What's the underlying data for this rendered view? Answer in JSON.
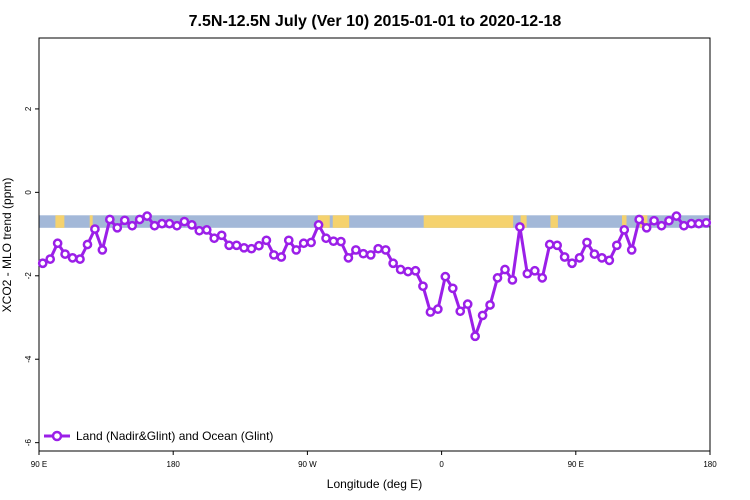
{
  "chart_data": {
    "type": "line",
    "title": "7.5N-12.5N July (Ver 10)   2015-01-01 to 2020-12-18",
    "xlabel": "Longitude (deg E)",
    "ylabel": "XCO2 - MLO trend (ppm)",
    "x_tick_labels": [
      "90 E",
      "180",
      "90 W",
      "0",
      "90 E",
      "180"
    ],
    "x_tick_values": [
      90,
      180,
      270,
      360,
      450,
      540
    ],
    "xlim": [
      90,
      540
    ],
    "y_tick_values": [
      -6,
      -4,
      -2,
      0,
      2
    ],
    "y_tick_labels": [
      "-6",
      "-4",
      "-2",
      "0",
      "2"
    ],
    "ylim": [
      -6.2,
      3.7
    ],
    "band": {
      "y_range": [
        -0.85,
        -0.55
      ],
      "ocean_color": "#a3b8d8",
      "land_color": "#f5d26e",
      "land_segments": [
        [
          101,
          107
        ],
        [
          124,
          126
        ],
        [
          277,
          285
        ],
        [
          287,
          298
        ],
        [
          348,
          408
        ],
        [
          413,
          417
        ],
        [
          433,
          438
        ],
        [
          481,
          484
        ],
        [
          493,
          498
        ]
      ]
    },
    "legend": {
      "position": "bottom-left",
      "entries": [
        {
          "name": "Land (Nadir&Glint) and Ocean (Glint)",
          "color": "#9b1fe8"
        }
      ]
    },
    "series": [
      {
        "name": "Land (Nadir&Glint) and Ocean (Glint)",
        "color": "#9b1fe8",
        "x": [
          92.5,
          97.5,
          102.5,
          107.5,
          112.5,
          117.5,
          122.5,
          127.5,
          132.5,
          137.5,
          142.5,
          147.5,
          152.5,
          157.5,
          162.5,
          167.5,
          172.5,
          177.5,
          182.5,
          187.5,
          192.5,
          197.5,
          202.5,
          207.5,
          212.5,
          217.5,
          222.5,
          227.5,
          232.5,
          237.5,
          242.5,
          247.5,
          252.5,
          257.5,
          262.5,
          267.5,
          272.5,
          277.5,
          282.5,
          287.5,
          292.5,
          297.5,
          302.5,
          307.5,
          312.5,
          317.5,
          322.5,
          327.5,
          332.5,
          337.5,
          342.5,
          347.5,
          352.5,
          357.5,
          362.5,
          367.5,
          372.5,
          377.5,
          382.5,
          387.5,
          392.5,
          397.5,
          402.5,
          407.5,
          412.5,
          417.5,
          422.5,
          427.5,
          432.5,
          437.5,
          442.5,
          447.5,
          452.5,
          457.5,
          462.5,
          467.5,
          472.5,
          477.5,
          482.5,
          487.5,
          492.5,
          497.5,
          502.5,
          507.5,
          512.5,
          517.5,
          522.5,
          527.5,
          532.5,
          537.5
        ],
        "y": [
          -1.7,
          -1.6,
          -1.22,
          -1.48,
          -1.57,
          -1.6,
          -1.25,
          -0.88,
          -1.38,
          -0.65,
          -0.85,
          -0.67,
          -0.8,
          -0.65,
          -0.57,
          -0.8,
          -0.75,
          -0.75,
          -0.8,
          -0.7,
          -0.78,
          -0.92,
          -0.9,
          -1.1,
          -1.03,
          -1.27,
          -1.27,
          -1.33,
          -1.35,
          -1.28,
          -1.15,
          -1.5,
          -1.55,
          -1.15,
          -1.38,
          -1.22,
          -1.2,
          -0.78,
          -1.1,
          -1.17,
          -1.18,
          -1.57,
          -1.38,
          -1.47,
          -1.5,
          -1.35,
          -1.38,
          -1.7,
          -1.85,
          -1.9,
          -1.88,
          -2.25,
          -2.87,
          -2.8,
          -2.02,
          -2.3,
          -2.85,
          -2.68,
          -3.45,
          -2.95,
          -2.7,
          -2.05,
          -1.85,
          -2.1,
          -0.83,
          -1.95,
          -1.88,
          -2.05,
          -1.25,
          -1.27,
          -1.55,
          -1.7,
          -1.57,
          -1.2,
          -1.48,
          -1.57,
          -1.63,
          -1.27,
          -0.9,
          -1.38,
          -0.65,
          -0.85,
          -0.68,
          -0.8,
          -0.68,
          -0.57,
          -0.8,
          -0.75,
          -0.75,
          -0.73
        ]
      }
    ]
  }
}
